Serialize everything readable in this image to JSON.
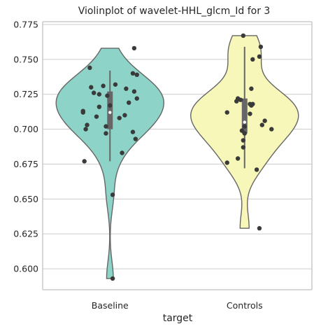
{
  "chart_data": {
    "type": "violin",
    "title": "Violinplot of wavelet-HHL_glcm_Id for 3",
    "xlabel": "target",
    "ylabel": "",
    "categories": [
      "Baseline",
      "Controls"
    ],
    "ylim": [
      0.585,
      0.777
    ],
    "yticks": [
      0.6,
      0.625,
      0.65,
      0.675,
      0.7,
      0.725,
      0.75,
      0.775
    ],
    "ytick_labels": [
      "0.600",
      "0.625",
      "0.650",
      "0.675",
      "0.700",
      "0.725",
      "0.750",
      "0.775"
    ],
    "grid": "horizontal",
    "colors": {
      "Baseline": "#8dd3c7",
      "Controls": "#f7f7b9",
      "points": "#3a3a3a",
      "box": "#666666"
    },
    "series": [
      {
        "category": "Baseline",
        "min": 0.593,
        "max": 0.758,
        "q1": 0.7,
        "median": 0.712,
        "q3": 0.727,
        "whisker_low": 0.677,
        "whisker_high": 0.742,
        "points": [
          0.758,
          0.744,
          0.74,
          0.739,
          0.732,
          0.731,
          0.73,
          0.729,
          0.727,
          0.726,
          0.725,
          0.724,
          0.722,
          0.719,
          0.717,
          0.716,
          0.713,
          0.712,
          0.71,
          0.709,
          0.708,
          0.703,
          0.702,
          0.7,
          0.698,
          0.697,
          0.693,
          0.683,
          0.677,
          0.653,
          0.593
        ],
        "point_offsets": [
          0.18,
          -0.15,
          0.17,
          0.2,
          0.04,
          -0.05,
          -0.14,
          0.12,
          0.18,
          -0.12,
          -0.08,
          -0.02,
          0.2,
          0.14,
          0.0,
          -0.08,
          -0.2,
          -0.2,
          0.11,
          -0.1,
          0.07,
          -0.17,
          -0.03,
          -0.18,
          0.17,
          -0.03,
          0.19,
          0.09,
          -0.19,
          0.02,
          0.02
        ]
      },
      {
        "category": "Controls",
        "min": 0.629,
        "max": 0.767,
        "q1": 0.697,
        "median": 0.705,
        "q3": 0.722,
        "whisker_low": 0.672,
        "whisker_high": 0.759,
        "points": [
          0.767,
          0.759,
          0.752,
          0.75,
          0.729,
          0.722,
          0.721,
          0.72,
          0.718,
          0.718,
          0.717,
          0.712,
          0.711,
          0.706,
          0.703,
          0.702,
          0.7,
          0.699,
          0.697,
          0.692,
          0.687,
          0.679,
          0.676,
          0.671,
          0.629
        ],
        "point_offsets": [
          -0.01,
          0.12,
          0.11,
          0.06,
          0.05,
          -0.05,
          -0.03,
          -0.06,
          0.04,
          0.06,
          0.05,
          -0.13,
          0.04,
          0.15,
          0.13,
          0.0,
          0.2,
          -0.02,
          0.0,
          -0.01,
          -0.01,
          -0.05,
          -0.13,
          0.09,
          0.11
        ]
      }
    ]
  }
}
